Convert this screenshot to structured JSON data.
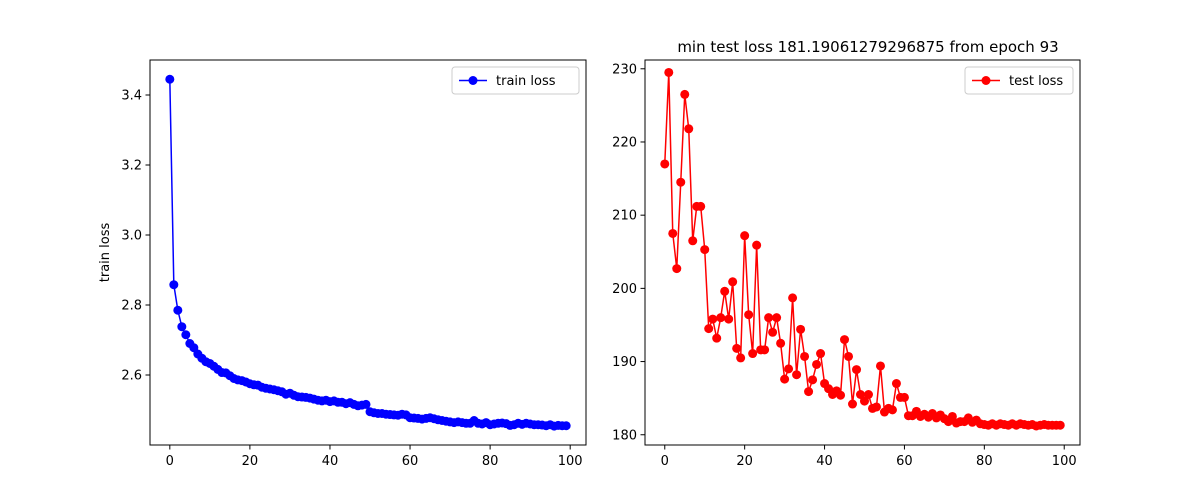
{
  "chart_data": [
    {
      "type": "line",
      "title": "",
      "xlabel": "",
      "ylabel": "train loss",
      "xlim": [
        -4.95,
        103.95
      ],
      "ylim": [
        2.4,
        3.5
      ],
      "xticks": [
        0,
        20,
        40,
        60,
        80,
        100
      ],
      "yticks": [
        2.6,
        2.8,
        3.0,
        3.2,
        3.4
      ],
      "ytick_labels": [
        "2.6",
        "2.8",
        "3.0",
        "3.2",
        "3.4"
      ],
      "grid": false,
      "legend": "upper-right",
      "series": [
        {
          "name": "train loss",
          "color": "#0000ff",
          "marker": "circle",
          "x": [
            0,
            1,
            2,
            3,
            4,
            5,
            6,
            7,
            8,
            9,
            10,
            11,
            12,
            13,
            14,
            15,
            16,
            17,
            18,
            19,
            20,
            21,
            22,
            23,
            24,
            25,
            26,
            27,
            28,
            29,
            30,
            31,
            32,
            33,
            34,
            35,
            36,
            37,
            38,
            39,
            40,
            41,
            42,
            43,
            44,
            45,
            46,
            47,
            48,
            49,
            50,
            51,
            52,
            53,
            54,
            55,
            56,
            57,
            58,
            59,
            60,
            61,
            62,
            63,
            64,
            65,
            66,
            67,
            68,
            69,
            70,
            71,
            72,
            73,
            74,
            75,
            76,
            77,
            78,
            79,
            80,
            81,
            82,
            83,
            84,
            85,
            86,
            87,
            88,
            89,
            90,
            91,
            92,
            93,
            94,
            95,
            96,
            97,
            98,
            99
          ],
          "values": [
            3.445,
            2.858,
            2.785,
            2.738,
            2.715,
            2.69,
            2.678,
            2.66,
            2.648,
            2.638,
            2.633,
            2.625,
            2.616,
            2.607,
            2.606,
            2.598,
            2.59,
            2.586,
            2.584,
            2.58,
            2.575,
            2.572,
            2.571,
            2.565,
            2.562,
            2.56,
            2.558,
            2.555,
            2.552,
            2.545,
            2.548,
            2.542,
            2.538,
            2.537,
            2.536,
            2.534,
            2.531,
            2.528,
            2.526,
            2.528,
            2.524,
            2.526,
            2.522,
            2.522,
            2.518,
            2.521,
            2.516,
            2.512,
            2.514,
            2.516,
            2.495,
            2.492,
            2.49,
            2.49,
            2.488,
            2.487,
            2.486,
            2.485,
            2.488,
            2.486,
            2.478,
            2.477,
            2.476,
            2.474,
            2.476,
            2.478,
            2.475,
            2.472,
            2.47,
            2.468,
            2.466,
            2.464,
            2.466,
            2.464,
            2.462,
            2.462,
            2.47,
            2.462,
            2.46,
            2.464,
            2.458,
            2.46,
            2.462,
            2.463,
            2.461,
            2.456,
            2.458,
            2.462,
            2.459,
            2.462,
            2.46,
            2.458,
            2.458,
            2.457,
            2.455,
            2.458,
            2.454,
            2.456,
            2.455,
            2.455
          ]
        }
      ]
    },
    {
      "type": "line",
      "title": "min test loss 181.19061279296875 from epoch 93",
      "xlabel": "",
      "ylabel": "",
      "xlim": [
        -4.95,
        103.95
      ],
      "ylim": [
        178.6,
        231.2
      ],
      "xticks": [
        0,
        20,
        40,
        60,
        80,
        100
      ],
      "yticks": [
        180,
        190,
        200,
        210,
        220,
        230
      ],
      "ytick_labels": [
        "180",
        "190",
        "200",
        "210",
        "220",
        "230"
      ],
      "grid": false,
      "legend": "upper-right",
      "series": [
        {
          "name": "test loss",
          "color": "#ff0000",
          "marker": "circle",
          "x": [
            0,
            1,
            2,
            3,
            4,
            5,
            6,
            7,
            8,
            9,
            10,
            11,
            12,
            13,
            14,
            15,
            16,
            17,
            18,
            19,
            20,
            21,
            22,
            23,
            24,
            25,
            26,
            27,
            28,
            29,
            30,
            31,
            32,
            33,
            34,
            35,
            36,
            37,
            38,
            39,
            40,
            41,
            42,
            43,
            44,
            45,
            46,
            47,
            48,
            49,
            50,
            51,
            52,
            53,
            54,
            55,
            56,
            57,
            58,
            59,
            60,
            61,
            62,
            63,
            64,
            65,
            66,
            67,
            68,
            69,
            70,
            71,
            72,
            73,
            74,
            75,
            76,
            77,
            78,
            79,
            80,
            81,
            82,
            83,
            84,
            85,
            86,
            87,
            88,
            89,
            90,
            91,
            92,
            93,
            94,
            95,
            96,
            97,
            98,
            99
          ],
          "values": [
            217.0,
            229.5,
            207.5,
            202.7,
            214.5,
            226.5,
            221.8,
            206.5,
            211.2,
            211.2,
            205.3,
            194.5,
            195.8,
            193.2,
            196.0,
            199.6,
            195.8,
            200.9,
            191.8,
            190.5,
            207.2,
            196.4,
            191.1,
            205.9,
            191.6,
            191.6,
            196.0,
            194.0,
            196.0,
            192.5,
            187.6,
            189.0,
            198.7,
            188.2,
            194.4,
            190.7,
            185.9,
            187.5,
            189.6,
            191.1,
            187.0,
            186.3,
            185.5,
            186.0,
            185.4,
            193.0,
            190.7,
            184.2,
            188.9,
            185.5,
            184.6,
            185.5,
            183.6,
            183.8,
            189.4,
            183.1,
            183.6,
            183.4,
            187.0,
            185.1,
            185.1,
            182.6,
            182.6,
            183.2,
            182.5,
            182.8,
            182.4,
            182.9,
            182.3,
            182.7,
            182.2,
            181.8,
            182.5,
            181.6,
            181.8,
            181.8,
            182.3,
            181.7,
            182.0,
            181.5,
            181.4,
            181.3,
            181.5,
            181.3,
            181.5,
            181.4,
            181.3,
            181.5,
            181.3,
            181.5,
            181.4,
            181.3,
            181.4,
            181.2,
            181.3,
            181.4,
            181.3,
            181.3,
            181.3,
            181.3
          ]
        }
      ]
    }
  ]
}
